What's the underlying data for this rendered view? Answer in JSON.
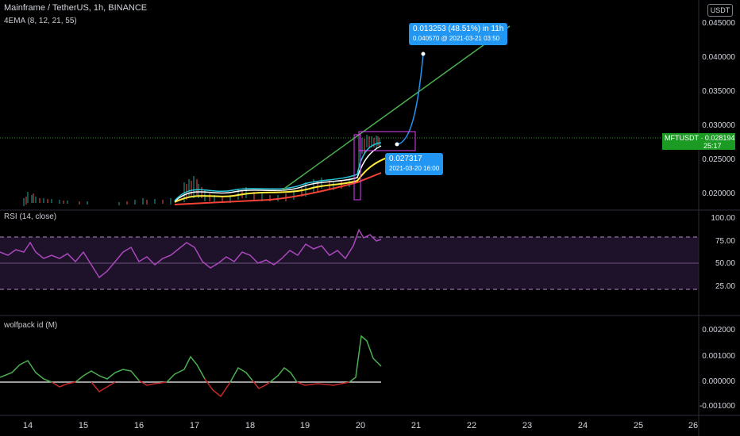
{
  "header": {
    "title": "Mainframe / TetherUS, 1h, BINANCE",
    "ema_label": "4EMA (8, 12, 21, 55)",
    "currency": "USDT"
  },
  "price_axis": [
    "0.045000",
    "0.040000",
    "0.035000",
    "0.030000",
    "0.025000",
    "0.020000"
  ],
  "price_tag": {
    "symbol_price": "MFTUSDT · 0.028194",
    "countdown": "25:17"
  },
  "callout_top": {
    "line1": "0.013253 (48.51%) in 11h",
    "line2": "0.040570 @ 2021-03-21  03:50"
  },
  "callout_bottom": {
    "line1": "0.027317",
    "line2": "2021-03-20 16:00"
  },
  "rsi": {
    "label": "RSI (14, close)",
    "ticks": [
      "100.00",
      "75.00",
      "50.00",
      "25.00"
    ]
  },
  "wolfpack": {
    "label": "wolfpack id (M)",
    "ticks": [
      "0.002000",
      "0.001000",
      "0.000000",
      "-0.001000"
    ]
  },
  "x_axis": [
    "14",
    "15",
    "16",
    "17",
    "18",
    "19",
    "20",
    "21",
    "22",
    "23",
    "24",
    "25",
    "26"
  ],
  "colors": {
    "green": "#4caf50",
    "blue": "#2196f3",
    "rsi": "#9c27b0",
    "tag": "#1b9b24"
  }
}
